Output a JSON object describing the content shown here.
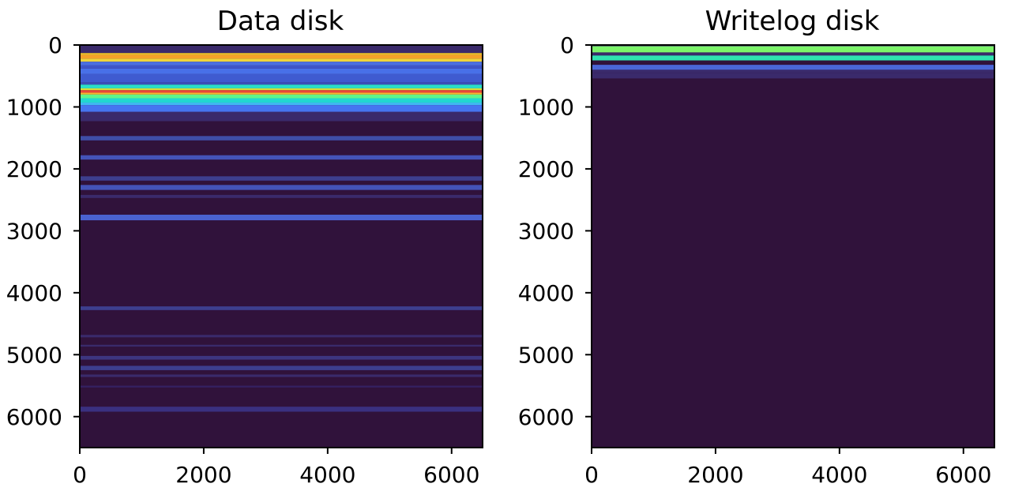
{
  "chart_data": [
    {
      "type": "heatmap",
      "title": "Data disk",
      "xlim": [
        0,
        6500
      ],
      "ylim": [
        6500,
        0
      ],
      "y_inverted": true,
      "xticks": [
        0,
        2000,
        4000,
        6000
      ],
      "yticks": [
        0,
        1000,
        2000,
        3000,
        4000,
        5000,
        6000
      ],
      "xticklabels": [
        "0",
        "2000",
        "4000",
        "6000"
      ],
      "yticklabels": [
        "0",
        "1000",
        "2000",
        "3000",
        "4000",
        "5000",
        "6000"
      ],
      "background_color": "#30123b",
      "colormap": "turbo",
      "grid": false,
      "bands": [
        {
          "y0": 0,
          "y1": 130,
          "color": "#3a2a6b"
        },
        {
          "y0": 130,
          "y1": 160,
          "color": "#e8c02b"
        },
        {
          "y0": 160,
          "y1": 220,
          "color": "#f4a12a"
        },
        {
          "y0": 220,
          "y1": 270,
          "color": "#f0d53a"
        },
        {
          "y0": 270,
          "y1": 330,
          "color": "#4b6fe0"
        },
        {
          "y0": 330,
          "y1": 380,
          "color": "#3e55c8"
        },
        {
          "y0": 380,
          "y1": 470,
          "color": "#4870e8"
        },
        {
          "y0": 470,
          "y1": 600,
          "color": "#3f5bd0"
        },
        {
          "y0": 600,
          "y1": 640,
          "color": "#3b50b8"
        },
        {
          "y0": 640,
          "y1": 700,
          "color": "#2ae0c8"
        },
        {
          "y0": 700,
          "y1": 730,
          "color": "#d8e035"
        },
        {
          "y0": 730,
          "y1": 770,
          "color": "#e8453a"
        },
        {
          "y0": 770,
          "y1": 800,
          "color": "#f6b82e"
        },
        {
          "y0": 800,
          "y1": 860,
          "color": "#5ff58a"
        },
        {
          "y0": 860,
          "y1": 930,
          "color": "#21d8d0"
        },
        {
          "y0": 930,
          "y1": 970,
          "color": "#3fb8f0"
        },
        {
          "y0": 970,
          "y1": 1080,
          "color": "#4675f0"
        },
        {
          "y0": 1080,
          "y1": 1230,
          "color": "#3a2a6b"
        },
        {
          "y0": 1470,
          "y1": 1540,
          "color": "#3f4ea8"
        },
        {
          "y0": 1780,
          "y1": 1850,
          "color": "#4453b8"
        },
        {
          "y0": 2120,
          "y1": 2190,
          "color": "#3d3e8e"
        },
        {
          "y0": 2260,
          "y1": 2340,
          "color": "#4453b8"
        },
        {
          "y0": 2420,
          "y1": 2470,
          "color": "#3a2a6b"
        },
        {
          "y0": 2740,
          "y1": 2830,
          "color": "#4a62d0"
        },
        {
          "y0": 4220,
          "y1": 4280,
          "color": "#3d3e8e"
        },
        {
          "y0": 4680,
          "y1": 4720,
          "color": "#3a2a6b"
        },
        {
          "y0": 4840,
          "y1": 4870,
          "color": "#3a2a6b"
        },
        {
          "y0": 5020,
          "y1": 5080,
          "color": "#3d3580"
        },
        {
          "y0": 5180,
          "y1": 5250,
          "color": "#3d3e8e"
        },
        {
          "y0": 5320,
          "y1": 5360,
          "color": "#3a2a6b"
        },
        {
          "y0": 5500,
          "y1": 5530,
          "color": "#342060"
        },
        {
          "y0": 5840,
          "y1": 5920,
          "color": "#3a3080"
        }
      ]
    },
    {
      "type": "heatmap",
      "title": "Writelog disk",
      "xlim": [
        0,
        6500
      ],
      "ylim": [
        6500,
        0
      ],
      "y_inverted": true,
      "xticks": [
        0,
        2000,
        4000,
        6000
      ],
      "yticks": [
        0,
        1000,
        2000,
        3000,
        4000,
        5000,
        6000
      ],
      "xticklabels": [
        "0",
        "2000",
        "4000",
        "6000"
      ],
      "yticklabels": [
        "0",
        "1000",
        "2000",
        "3000",
        "4000",
        "5000",
        "6000"
      ],
      "background_color": "#30123b",
      "colormap": "turbo",
      "grid": false,
      "bands": [
        {
          "y0": 0,
          "y1": 20,
          "color": "#3a2a6b"
        },
        {
          "y0": 20,
          "y1": 120,
          "color": "#7cf46a"
        },
        {
          "y0": 120,
          "y1": 170,
          "color": "#3a2a6b"
        },
        {
          "y0": 170,
          "y1": 250,
          "color": "#2fe2b0"
        },
        {
          "y0": 250,
          "y1": 320,
          "color": "#30123b"
        },
        {
          "y0": 320,
          "y1": 400,
          "color": "#4a66d8"
        },
        {
          "y0": 400,
          "y1": 450,
          "color": "#3a2a6b"
        },
        {
          "y0": 450,
          "y1": 540,
          "color": "#3a2a6b"
        }
      ]
    }
  ]
}
